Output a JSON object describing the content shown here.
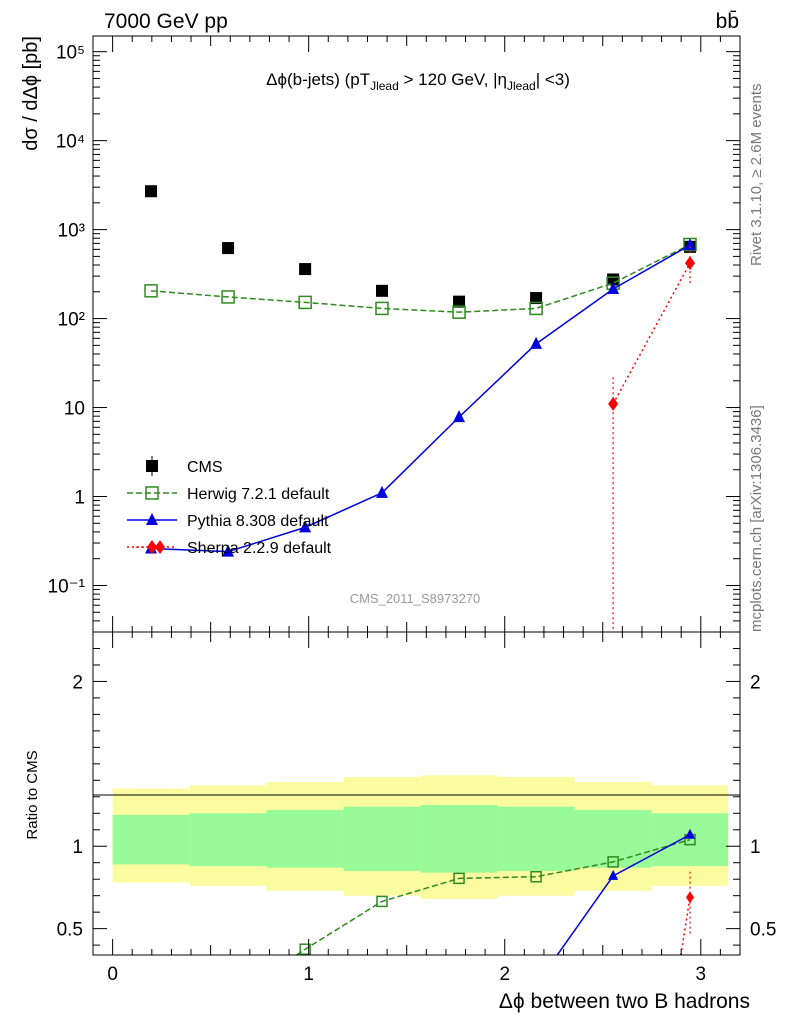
{
  "header": {
    "energy_label": "7000 GeV pp",
    "process_label": "bb̄"
  },
  "side_labels": {
    "rivet": "Rivet 3.1.10, ≥ 2.6M events",
    "mcplots": "mcplots.cern.ch [arXiv:1306.3436]"
  },
  "watermark": "CMS_2011_S8973270",
  "colors": {
    "cms": "#000000",
    "herwig": "#2e8b1e",
    "pythia": "#0000dd",
    "sherpa": "#ff0000",
    "band_outer": "#fbfba0",
    "band_inner": "#98fa98"
  },
  "chart_data": [
    {
      "type": "scatter",
      "title": "Δϕ(b-jets) (pT_Jlead > 120 GeV, η_Jlead <3)",
      "ylabel": "dσ / dΔϕ [pb]",
      "xlim": [
        -0.1,
        3.2
      ],
      "ylim": [
        0.03,
        150000
      ],
      "yscale": "log",
      "y_ticks": [
        {
          "value": 0.1,
          "label": "10⁻¹"
        },
        {
          "value": 1,
          "label": "1"
        },
        {
          "value": 10,
          "label": "10"
        },
        {
          "value": 100,
          "label": "10²"
        },
        {
          "value": 1000,
          "label": "10³"
        },
        {
          "value": 10000,
          "label": "10⁴"
        },
        {
          "value": 100000,
          "label": "10⁵"
        }
      ],
      "legend_position": "bottom-left",
      "series": [
        {
          "name": "CMS",
          "style": "data-points",
          "x": [
            0.196,
            0.589,
            0.982,
            1.374,
            1.767,
            2.16,
            2.553,
            2.945
          ],
          "y": [
            2700,
            620,
            360,
            205,
            155,
            170,
            275,
            640
          ]
        },
        {
          "name": "Herwig 7.2.1 default",
          "style": "dashed-open-square",
          "x": [
            0.196,
            0.589,
            0.982,
            1.374,
            1.767,
            2.16,
            2.553,
            2.945
          ],
          "y": [
            205,
            175,
            152,
            130,
            118,
            130,
            250,
            680
          ]
        },
        {
          "name": "Pythia 8.308 default",
          "style": "solid-triangle",
          "x": [
            0.196,
            0.589,
            0.982,
            1.374,
            1.767,
            2.16,
            2.553,
            2.945
          ],
          "y": [
            0.26,
            0.24,
            0.45,
            1.1,
            7.8,
            52,
            215,
            670
          ]
        },
        {
          "name": "Sherpa 2.2.9 default",
          "style": "dotted-diamond",
          "x": [
            0.196,
            2.553,
            2.945
          ],
          "y": [
            0.27,
            11,
            420
          ]
        }
      ]
    },
    {
      "type": "line",
      "ylabel": "Ratio to CMS",
      "xlabel": "Δϕ between two B hadrons",
      "xlim": [
        -0.1,
        3.2
      ],
      "ylim": [
        0.34,
        2.3
      ],
      "x_ticks": [
        0,
        1,
        2,
        3
      ],
      "y_ticks": [
        0.5,
        1,
        2
      ],
      "uncertainty_band_edges": [
        0,
        0.393,
        0.785,
        1.178,
        1.571,
        1.963,
        2.356,
        2.749,
        3.14
      ],
      "band_outer": [
        [
          0.78,
          1.35
        ],
        [
          0.76,
          1.37
        ],
        [
          0.73,
          1.39
        ],
        [
          0.7,
          1.42
        ],
        [
          0.68,
          1.43
        ],
        [
          0.7,
          1.42
        ],
        [
          0.73,
          1.39
        ],
        [
          0.76,
          1.37
        ]
      ],
      "band_inner": [
        [
          0.89,
          1.19
        ],
        [
          0.88,
          1.2
        ],
        [
          0.87,
          1.22
        ],
        [
          0.85,
          1.24
        ],
        [
          0.84,
          1.25
        ],
        [
          0.85,
          1.24
        ],
        [
          0.87,
          1.22
        ],
        [
          0.88,
          1.2
        ]
      ],
      "series": [
        {
          "name": "Herwig 7.2.1 default",
          "x": [
            0.982,
            1.374,
            1.767,
            2.16,
            2.553,
            2.945
          ],
          "y": [
            0.375,
            0.665,
            0.805,
            0.815,
            0.905,
            1.04
          ]
        },
        {
          "name": "Pythia 8.308 default",
          "x": [
            2.553,
            2.945
          ],
          "y": [
            0.82,
            1.07
          ]
        },
        {
          "name": "Sherpa 2.2.9 default",
          "x": [
            2.945
          ],
          "y": [
            0.69
          ]
        }
      ]
    }
  ]
}
